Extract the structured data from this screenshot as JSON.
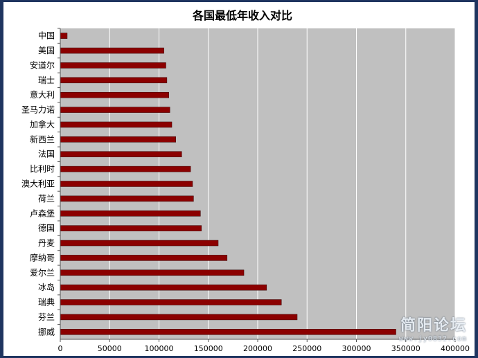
{
  "chart_data": {
    "type": "bar",
    "orientation": "horizontal",
    "title": "各国最低年收入对比",
    "categories": [
      "中国",
      "美国",
      "安道尔",
      "瑞士",
      "意大利",
      "圣马力诺",
      "加拿大",
      "新西兰",
      "法国",
      "比利时",
      "澳大利亚",
      "荷兰",
      "卢森堡",
      "德国",
      "丹麦",
      "摩纳哥",
      "爱尔兰",
      "冰岛",
      "瑞典",
      "芬兰",
      "挪威"
    ],
    "values": [
      7000,
      105000,
      107000,
      108000,
      110000,
      111000,
      113000,
      117000,
      123000,
      132000,
      134000,
      135000,
      142000,
      143000,
      160000,
      169000,
      186000,
      209000,
      224000,
      240000,
      340000
    ],
    "xlim": [
      0,
      400000
    ],
    "xticks": [
      0,
      50000,
      100000,
      150000,
      200000,
      250000,
      300000,
      350000,
      400000
    ],
    "grid": true,
    "legend": "none",
    "colors": {
      "bar": "#8b0000",
      "plot_bg": "#c0c0c0",
      "grid": "#ffffff"
    }
  },
  "watermark": {
    "main": "简阳论坛",
    "sub": "www.jy0832.com"
  }
}
